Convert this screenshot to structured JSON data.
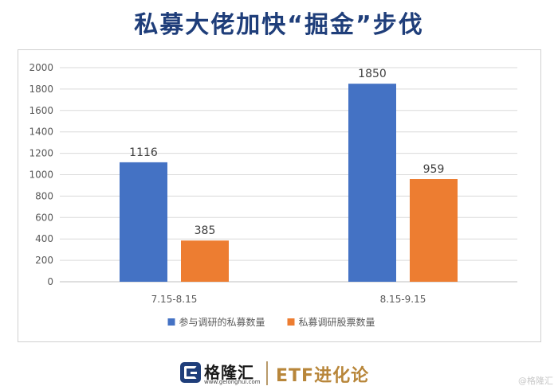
{
  "title": "私募大佬加快“掘金”步伐",
  "chart_data": {
    "type": "bar",
    "categories": [
      "7.15-8.15",
      "8.15-9.15"
    ],
    "series": [
      {
        "name": "参与调研的私募数量",
        "values": [
          1116,
          1850
        ],
        "color": "#4472c4"
      },
      {
        "name": "私募调研股票数量",
        "values": [
          385,
          959
        ],
        "color": "#ed7d31"
      }
    ],
    "ylim": [
      0,
      2000
    ],
    "yticks": [
      "0",
      "200",
      "400",
      "600",
      "800",
      "1000",
      "1200",
      "1400",
      "1600",
      "1800",
      "2000"
    ],
    "grid": true,
    "legend_position": "bottom",
    "data_labels": [
      "1116",
      "385",
      "1850",
      "959"
    ]
  },
  "footer": {
    "brand": "格隆汇",
    "brand_url": "www.gelonghui.com",
    "product": "ETF进化论"
  },
  "watermark": "@格隆汇"
}
